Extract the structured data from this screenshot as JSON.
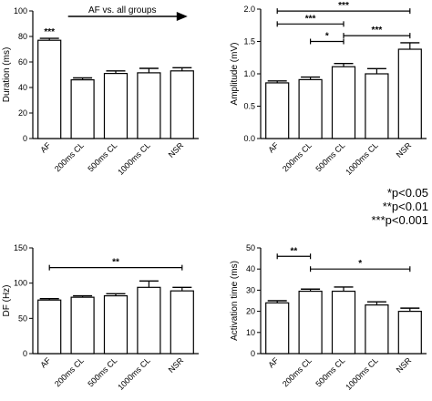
{
  "legend": [
    "*p<0.05",
    "**p<0.01",
    "***p<0.001"
  ],
  "chart_data": [
    {
      "type": "bar",
      "ylabel": "Duration (ms)",
      "categories": [
        "AF",
        "200ms CL",
        "500ms CL",
        "1000ms CL",
        "NSR"
      ],
      "values": [
        77,
        46,
        51,
        51.5,
        53
      ],
      "errors": [
        1.5,
        1.5,
        2,
        3.5,
        2.5
      ],
      "ylim": [
        0,
        100
      ],
      "yticks": [
        0,
        20,
        40,
        60,
        80,
        100
      ],
      "annotations": [
        {
          "type": "star",
          "text": "***",
          "bar": 0
        },
        {
          "type": "arrow",
          "text": "AF vs. all groups",
          "from": 0,
          "to": 4
        }
      ]
    },
    {
      "type": "bar",
      "ylabel": "Amplitude (mV)",
      "categories": [
        "AF",
        "200ms CL",
        "500ms CL",
        "1000ms CL",
        "NSR"
      ],
      "values": [
        0.86,
        0.91,
        1.11,
        1.0,
        1.38
      ],
      "errors": [
        0.03,
        0.04,
        0.05,
        0.08,
        0.1
      ],
      "ylim": [
        0,
        2.0
      ],
      "yticks": [
        0,
        0.5,
        1.0,
        1.5,
        2.0
      ],
      "ytick_labels": [
        "0.0",
        "0.5",
        "1.0",
        "1.5",
        "2.0"
      ],
      "annotations": [
        {
          "type": "bracket",
          "text": "***",
          "from": 0,
          "to": 4,
          "y": 1.97
        },
        {
          "type": "bracket",
          "text": "***",
          "from": 0,
          "to": 2,
          "y": 1.77
        },
        {
          "type": "bracket",
          "text": "***",
          "from": 2,
          "to": 4,
          "y": 1.59
        },
        {
          "type": "bracket",
          "text": "*",
          "from": 1,
          "to": 2,
          "y": 1.5
        }
      ]
    },
    {
      "type": "bar",
      "ylabel": "DF (Hz)",
      "categories": [
        "AF",
        "200ms CL",
        "500ms CL",
        "1000ms CL",
        "NSR"
      ],
      "values": [
        76,
        80,
        82,
        94,
        89
      ],
      "errors": [
        2,
        2,
        3,
        9,
        5
      ],
      "ylim": [
        0,
        150
      ],
      "yticks": [
        0,
        50,
        100,
        150
      ],
      "annotations": [
        {
          "type": "bracket",
          "text": "**",
          "from": 0,
          "to": 4,
          "y": 122
        }
      ]
    },
    {
      "type": "bar",
      "ylabel": "Activation time (ms)",
      "categories": [
        "AF",
        "200ms CL",
        "500ms CL",
        "1000ms CL",
        "NSR"
      ],
      "values": [
        24,
        29.5,
        29.5,
        23,
        20
      ],
      "errors": [
        1,
        1,
        2,
        1.5,
        1.5
      ],
      "ylim": [
        0,
        50
      ],
      "yticks": [
        0,
        10,
        20,
        30,
        40,
        50
      ],
      "annotations": [
        {
          "type": "bracket",
          "text": "**",
          "from": 0,
          "to": 1,
          "y": 46
        },
        {
          "type": "bracket",
          "text": "*",
          "from": 1,
          "to": 4,
          "y": 40
        }
      ]
    }
  ]
}
